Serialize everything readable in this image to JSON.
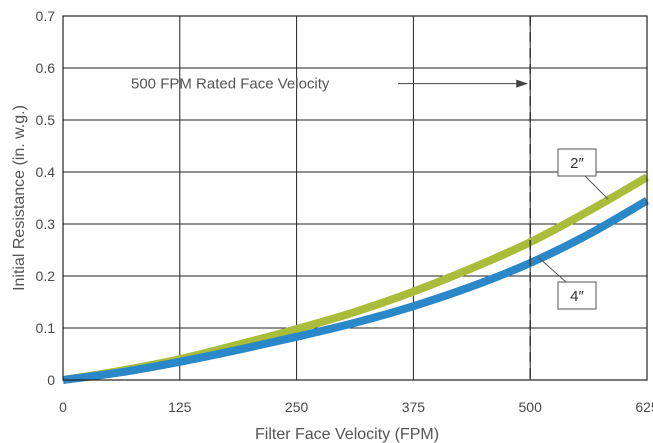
{
  "chart_data": {
    "type": "line",
    "xlabel": "Filter Face Velocity (FPM)",
    "ylabel": "Initial Resistance (in. w.g.)",
    "xlim": [
      0,
      625
    ],
    "ylim": [
      0,
      0.7
    ],
    "xticks": [
      0,
      125,
      250,
      375,
      500,
      625
    ],
    "yticks": [
      0,
      0.1,
      0.2,
      0.3,
      0.4,
      0.5,
      0.6,
      0.7
    ],
    "xtick_labels": [
      "0",
      "125",
      "250",
      "375",
      "500",
      "625"
    ],
    "ytick_labels": [
      "0",
      "0.1",
      "0.2",
      "0.3",
      "0.4",
      "0.5",
      "0.6",
      "0.7"
    ],
    "grid": true,
    "series": [
      {
        "name": "2″",
        "color": "#a9bd3b",
        "x": [
          0,
          62.5,
          125,
          187.5,
          250,
          312.5,
          375,
          437.5,
          500,
          562.5,
          625
        ],
        "y": [
          0,
          0.018,
          0.04,
          0.068,
          0.098,
          0.131,
          0.17,
          0.215,
          0.265,
          0.325,
          0.39
        ]
      },
      {
        "name": "4″",
        "color": "#2a87c8",
        "x": [
          0,
          62.5,
          125,
          187.5,
          250,
          312.5,
          375,
          437.5,
          500,
          562.5,
          625
        ],
        "y": [
          0,
          0.015,
          0.035,
          0.058,
          0.083,
          0.11,
          0.142,
          0.18,
          0.225,
          0.28,
          0.345
        ]
      }
    ],
    "reference_line": {
      "x": 500,
      "label": "500 FPM Rated Face Velocity",
      "label_y": 0.57
    }
  }
}
